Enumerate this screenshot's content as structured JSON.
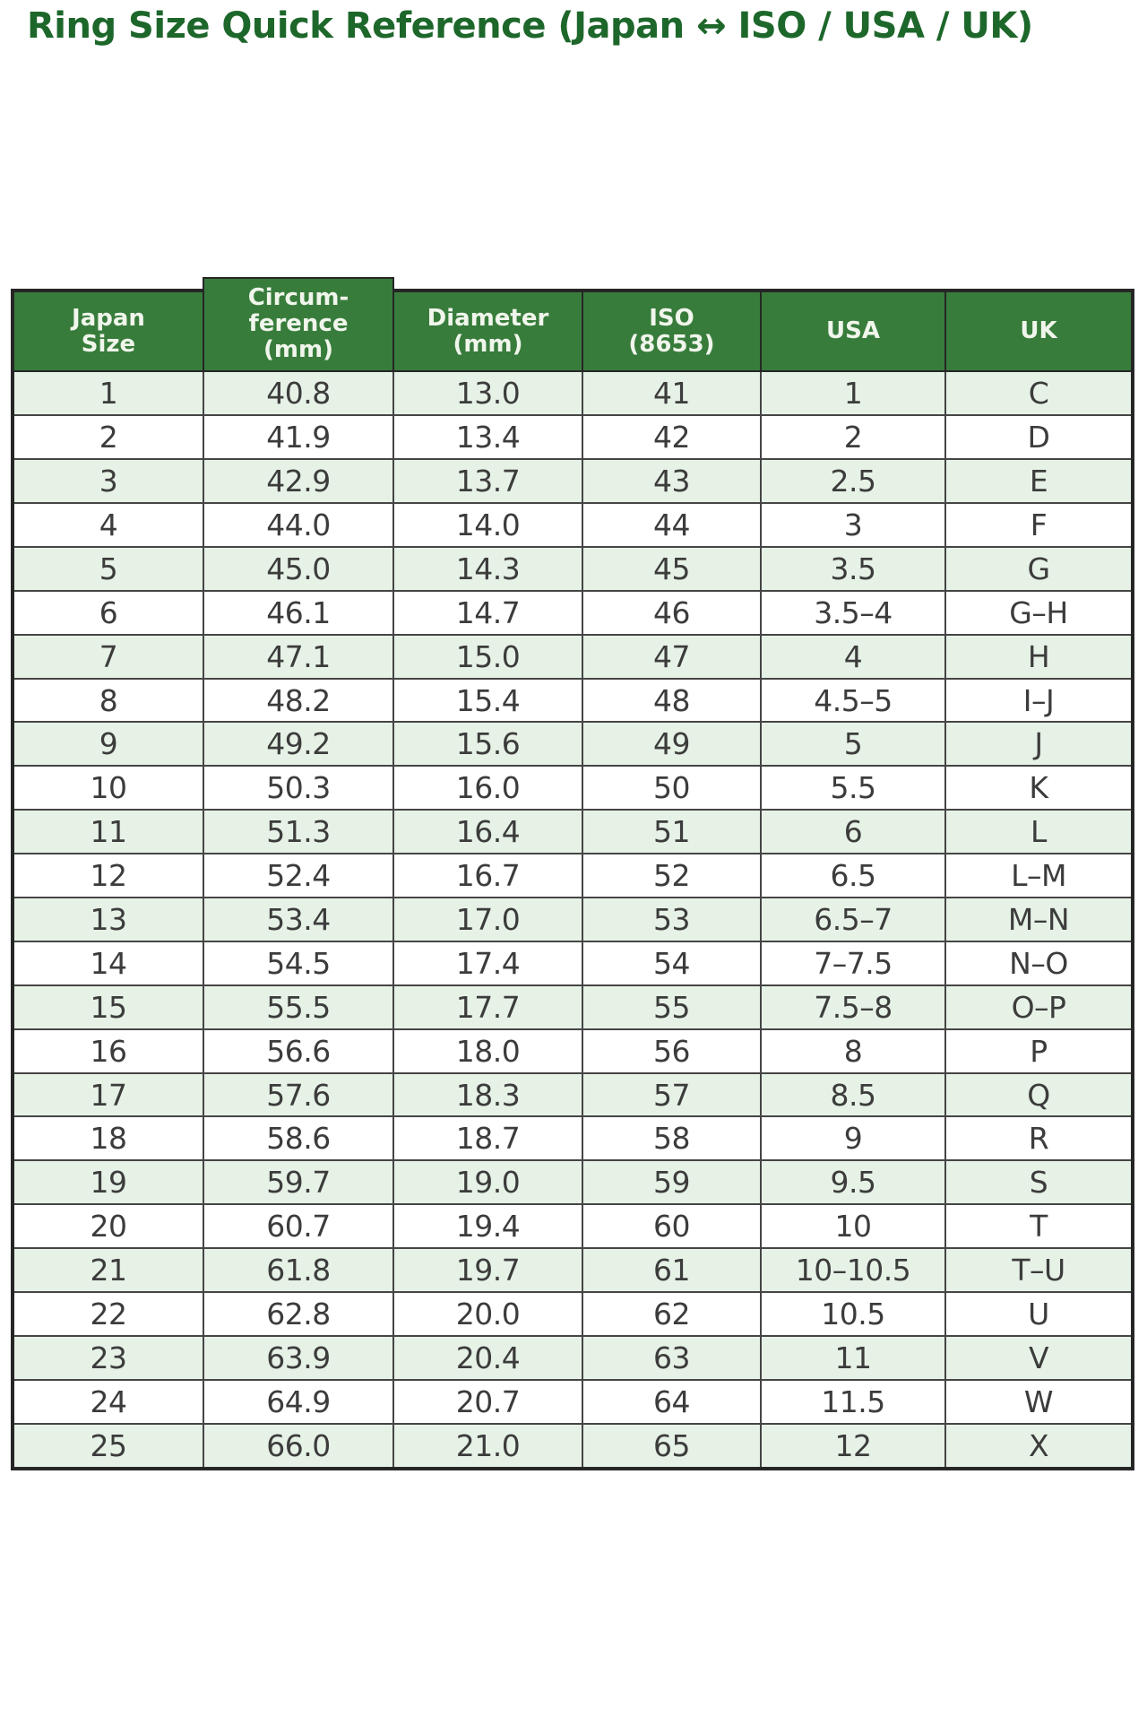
{
  "title": "Ring Size Quick Reference (Japan ↔ ISO / USA / UK)",
  "colors": {
    "title_text": "#1d672b",
    "header_bg": "#387c3c",
    "header_text": "#f0f6eb",
    "row_bg": "#ffffff",
    "row_alt_bg": "#e7f2e7",
    "cell_text": "#3c3c3c",
    "border_outer": "#262626",
    "border_inner": "#454545"
  },
  "table": {
    "columns": [
      {
        "id": "japan-size",
        "label": "Japan\nSize"
      },
      {
        "id": "circumference-mm",
        "label": "Circum-\nference\n(mm)"
      },
      {
        "id": "diameter-mm",
        "label": "Diameter\n(mm)"
      },
      {
        "id": "iso-8653",
        "label": "ISO\n(8653)"
      },
      {
        "id": "usa",
        "label": "USA"
      },
      {
        "id": "uk",
        "label": "UK"
      }
    ],
    "rows": [
      [
        "1",
        "40.8",
        "13.0",
        "41",
        "1",
        "C"
      ],
      [
        "2",
        "41.9",
        "13.4",
        "42",
        "2",
        "D"
      ],
      [
        "3",
        "42.9",
        "13.7",
        "43",
        "2.5",
        "E"
      ],
      [
        "4",
        "44.0",
        "14.0",
        "44",
        "3",
        "F"
      ],
      [
        "5",
        "45.0",
        "14.3",
        "45",
        "3.5",
        "G"
      ],
      [
        "6",
        "46.1",
        "14.7",
        "46",
        "3.5–4",
        "G–H"
      ],
      [
        "7",
        "47.1",
        "15.0",
        "47",
        "4",
        "H"
      ],
      [
        "8",
        "48.2",
        "15.4",
        "48",
        "4.5–5",
        "I–J"
      ],
      [
        "9",
        "49.2",
        "15.6",
        "49",
        "5",
        "J"
      ],
      [
        "10",
        "50.3",
        "16.0",
        "50",
        "5.5",
        "K"
      ],
      [
        "11",
        "51.3",
        "16.4",
        "51",
        "6",
        "L"
      ],
      [
        "12",
        "52.4",
        "16.7",
        "52",
        "6.5",
        "L–M"
      ],
      [
        "13",
        "53.4",
        "17.0",
        "53",
        "6.5–7",
        "M–N"
      ],
      [
        "14",
        "54.5",
        "17.4",
        "54",
        "7–7.5",
        "N–O"
      ],
      [
        "15",
        "55.5",
        "17.7",
        "55",
        "7.5–8",
        "O–P"
      ],
      [
        "16",
        "56.6",
        "18.0",
        "56",
        "8",
        "P"
      ],
      [
        "17",
        "57.6",
        "18.3",
        "57",
        "8.5",
        "Q"
      ],
      [
        "18",
        "58.6",
        "18.7",
        "58",
        "9",
        "R"
      ],
      [
        "19",
        "59.7",
        "19.0",
        "59",
        "9.5",
        "S"
      ],
      [
        "20",
        "60.7",
        "19.4",
        "60",
        "10",
        "T"
      ],
      [
        "21",
        "61.8",
        "19.7",
        "61",
        "10–10.5",
        "T–U"
      ],
      [
        "22",
        "62.8",
        "20.0",
        "62",
        "10.5",
        "U"
      ],
      [
        "23",
        "63.9",
        "20.4",
        "63",
        "11",
        "V"
      ],
      [
        "24",
        "64.9",
        "20.7",
        "64",
        "11.5",
        "W"
      ],
      [
        "25",
        "66.0",
        "21.0",
        "65",
        "12",
        "X"
      ]
    ]
  }
}
